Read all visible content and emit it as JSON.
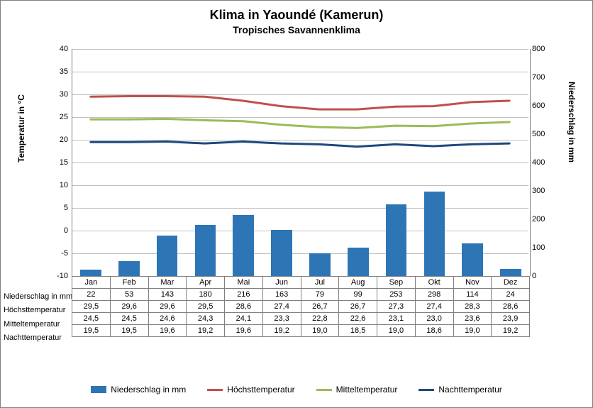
{
  "title": "Klima in Yaoundé (Kamerun)",
  "subtitle": "Tropisches Savannenklima",
  "y_left": {
    "label": "Temperatur in °C",
    "min": -10,
    "max": 40,
    "step": 5
  },
  "y_right": {
    "label": "Niederschlag in mm",
    "min": 0,
    "max": 800,
    "step": 100
  },
  "months": [
    "Jan",
    "Feb",
    "Mar",
    "Apr",
    "Mai",
    "Jun",
    "Jul",
    "Aug",
    "Sep",
    "Okt",
    "Nov",
    "Dez"
  ],
  "series": {
    "precipitation": {
      "label": "Niederschlag in mm",
      "type": "bar",
      "color": "#2e75b6",
      "values": [
        22,
        53,
        143,
        180,
        216,
        163,
        79,
        99,
        253,
        298,
        114,
        24
      ],
      "bar_width": 0.55
    },
    "high": {
      "label": "Höchsttemperatur",
      "type": "line",
      "color": "#c0504d",
      "width": 3,
      "values": [
        29.5,
        29.6,
        29.6,
        29.5,
        28.6,
        27.4,
        26.7,
        26.7,
        27.3,
        27.4,
        28.3,
        28.6
      ]
    },
    "mean": {
      "label": "Mitteltemperatur",
      "type": "line",
      "color": "#9bbb59",
      "width": 3,
      "values": [
        24.5,
        24.5,
        24.6,
        24.3,
        24.1,
        23.3,
        22.8,
        22.6,
        23.1,
        23.0,
        23.6,
        23.9
      ]
    },
    "night": {
      "label": "Nachttemperatur",
      "type": "line",
      "color": "#1f497d",
      "width": 3,
      "values": [
        19.5,
        19.5,
        19.6,
        19.2,
        19.6,
        19.2,
        19.0,
        18.5,
        19.0,
        18.6,
        19.0,
        19.2
      ]
    }
  },
  "table_rows": [
    {
      "key": "precipitation",
      "label": "Niederschlag in mm",
      "decimals": 0
    },
    {
      "key": "high",
      "label": "Höchsttemperatur",
      "decimals": 1
    },
    {
      "key": "mean",
      "label": "Mitteltemperatur",
      "decimals": 1
    },
    {
      "key": "night",
      "label": "Nachttemperatur",
      "decimals": 1
    }
  ],
  "colors": {
    "grid": "#bfbfbf",
    "border": "#808080",
    "background": "#ffffff"
  }
}
